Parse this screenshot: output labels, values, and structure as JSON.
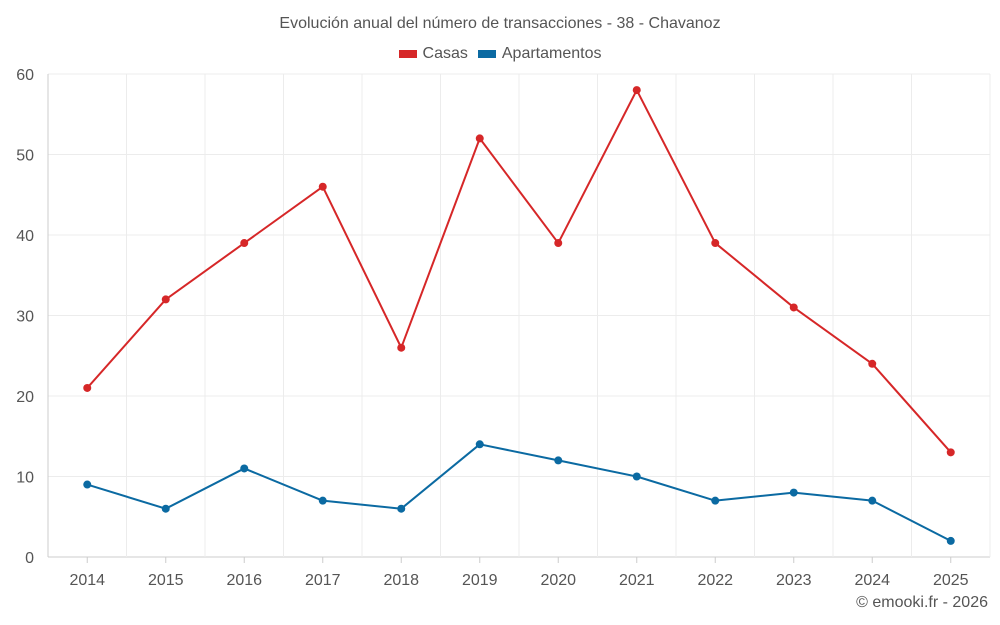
{
  "chart_data": {
    "type": "line",
    "title": "Evolución anual del número de transacciones - 38 - Chavanoz",
    "xlabel": "",
    "ylabel": "",
    "ylim": [
      0,
      60
    ],
    "yticks": [
      0,
      10,
      20,
      30,
      40,
      50,
      60
    ],
    "categories": [
      "2014",
      "2015",
      "2016",
      "2017",
      "2018",
      "2019",
      "2020",
      "2021",
      "2022",
      "2023",
      "2024",
      "2025"
    ],
    "series": [
      {
        "name": "Casas",
        "color": "#d62728",
        "values": [
          21,
          32,
          39,
          46,
          26,
          52,
          39,
          58,
          39,
          31,
          24,
          13
        ]
      },
      {
        "name": "Apartamentos",
        "color": "#0b6aa2",
        "values": [
          9,
          6,
          11,
          7,
          6,
          14,
          12,
          10,
          7,
          8,
          7,
          2
        ]
      }
    ],
    "grid": true,
    "legend": "top-center"
  },
  "credit": "© emooki.fr - 2026"
}
